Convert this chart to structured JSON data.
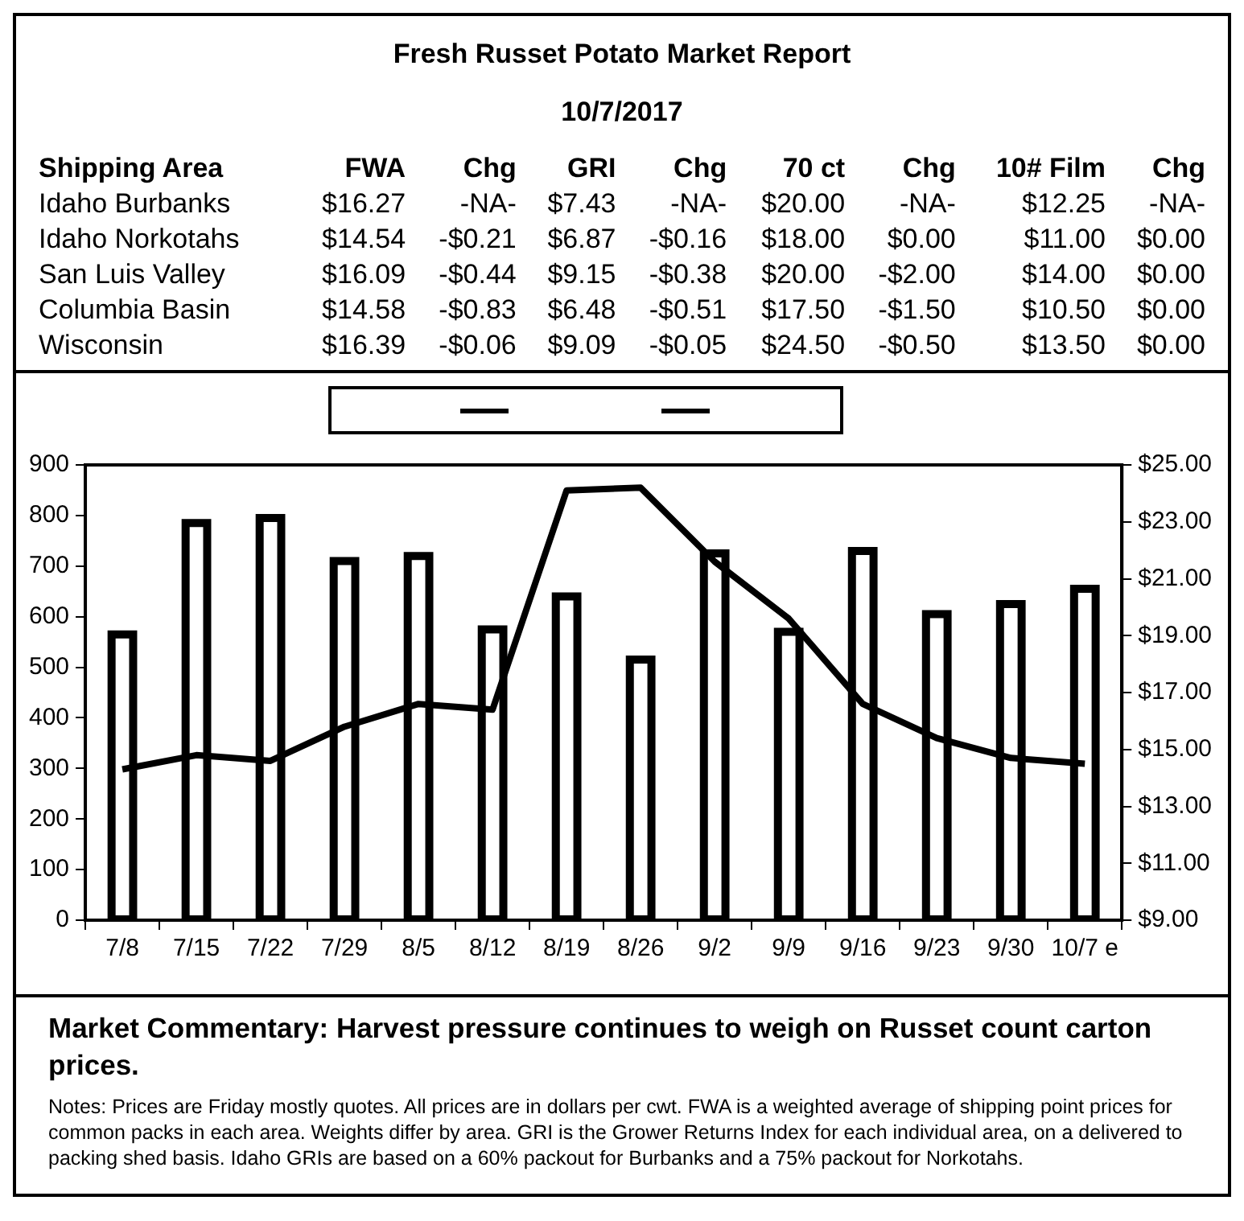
{
  "chart_data": [
    {
      "type": "other",
      "title": "Fresh Russet Potato Market Report",
      "subtitle": "10/7/2017",
      "ylabel": "Shipping Area",
      "categories": [
        "FWA",
        "Chg",
        "GRI",
        "Chg",
        "70 ct",
        "Chg",
        "10# Film",
        "Chg"
      ],
      "y_categories": [
        "Idaho Burbanks",
        "Idaho Norkotahs",
        "San Luis Valley",
        "Columbia Basin",
        "Wisconsin"
      ],
      "cell_labels": [
        [
          "$16.27",
          "-NA-",
          "$7.43",
          "-NA-",
          "$20.00",
          "-NA-",
          "$12.25",
          "-NA-"
        ],
        [
          "$14.54",
          "-$0.21",
          "$6.87",
          "-$0.16",
          "$18.00",
          "$0.00",
          "$11.00",
          "$0.00"
        ],
        [
          "$16.09",
          "-$0.44",
          "$9.15",
          "-$0.38",
          "$20.00",
          "-$2.00",
          "$14.00",
          "$0.00"
        ],
        [
          "$14.58",
          "-$0.83",
          "$6.48",
          "-$0.51",
          "$17.50",
          "-$1.50",
          "$10.50",
          "$0.00"
        ],
        [
          "$16.39",
          "-$0.06",
          "$9.09",
          "-$0.05",
          "$24.50",
          "-$0.50",
          "$13.50",
          "$0.00"
        ]
      ]
    },
    {
      "type": "bar",
      "categories": [
        "7/8",
        "7/15",
        "7/22",
        "7/29",
        "8/5",
        "8/12",
        "8/19",
        "8/26",
        "9/2",
        "9/9",
        "9/16",
        "9/23",
        "9/30",
        "10/7 e"
      ],
      "series": [
        {
          "type": "bar",
          "color": "#000000",
          "values": [
            565,
            785,
            795,
            710,
            720,
            575,
            640,
            515,
            725,
            570,
            730,
            605,
            625,
            655
          ]
        },
        {
          "type": "line",
          "axis": "y2",
          "color": "#000000",
          "values": [
            14.3,
            14.8,
            14.6,
            15.8,
            16.6,
            16.4,
            24.1,
            24.2,
            21.6,
            19.6,
            16.6,
            15.4,
            14.7,
            14.5
          ]
        }
      ],
      "ylim": [
        0,
        900
      ],
      "yticks": [
        0,
        100,
        200,
        300,
        400,
        500,
        600,
        700,
        800,
        900
      ],
      "y2lim": [
        9,
        25
      ],
      "y2ticks": [
        {
          "value": 9,
          "label": "$9.00"
        },
        {
          "value": 11,
          "label": "$11.00"
        },
        {
          "value": 13,
          "label": "$13.00"
        },
        {
          "value": 15,
          "label": "$15.00"
        },
        {
          "value": 17,
          "label": "$17.00"
        },
        {
          "value": 19,
          "label": "$19.00"
        },
        {
          "value": 21,
          "label": "$21.00"
        },
        {
          "value": 23,
          "label": "$23.00"
        },
        {
          "value": 25,
          "label": "$25.00"
        }
      ],
      "grid": false,
      "marker": "none",
      "line_style": "solid",
      "annotations": [
        "Market Commentary: Harvest pressure continues to weigh on Russet count carton prices.",
        "Notes: Prices are Friday mostly quotes. All prices are in dollars per cwt. FWA is a weighted average of shipping point prices for  common packs in each area. Weights differ by area. GRI is the Grower Returns Index for each individual area, on a delivered to packing shed basis. Idaho GRIs are based on a 60% packout for Burbanks and a 75% packout for Norkotahs."
      ]
    }
  ]
}
